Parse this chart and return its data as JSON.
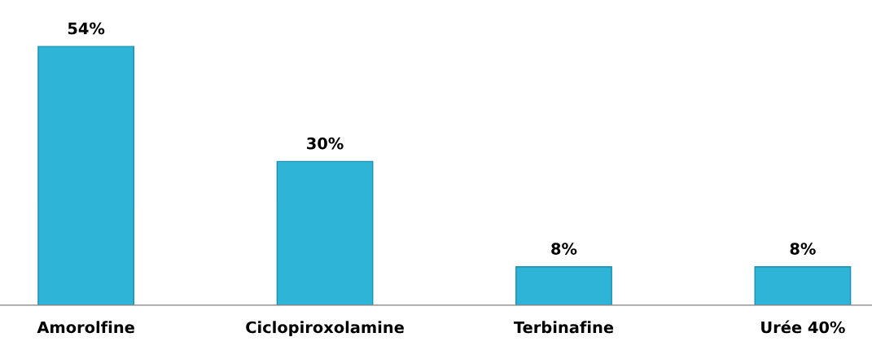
{
  "chart_data": {
    "type": "bar",
    "categories": [
      "Amorolfine",
      "Ciclopiroxolamine",
      "Terbinafine",
      "Urée 40%"
    ],
    "values": [
      54,
      30,
      8,
      8
    ],
    "value_labels": [
      "54%",
      "30%",
      "8%",
      "8%"
    ],
    "color": "#2eb4d6",
    "grid": false,
    "legend": false
  }
}
